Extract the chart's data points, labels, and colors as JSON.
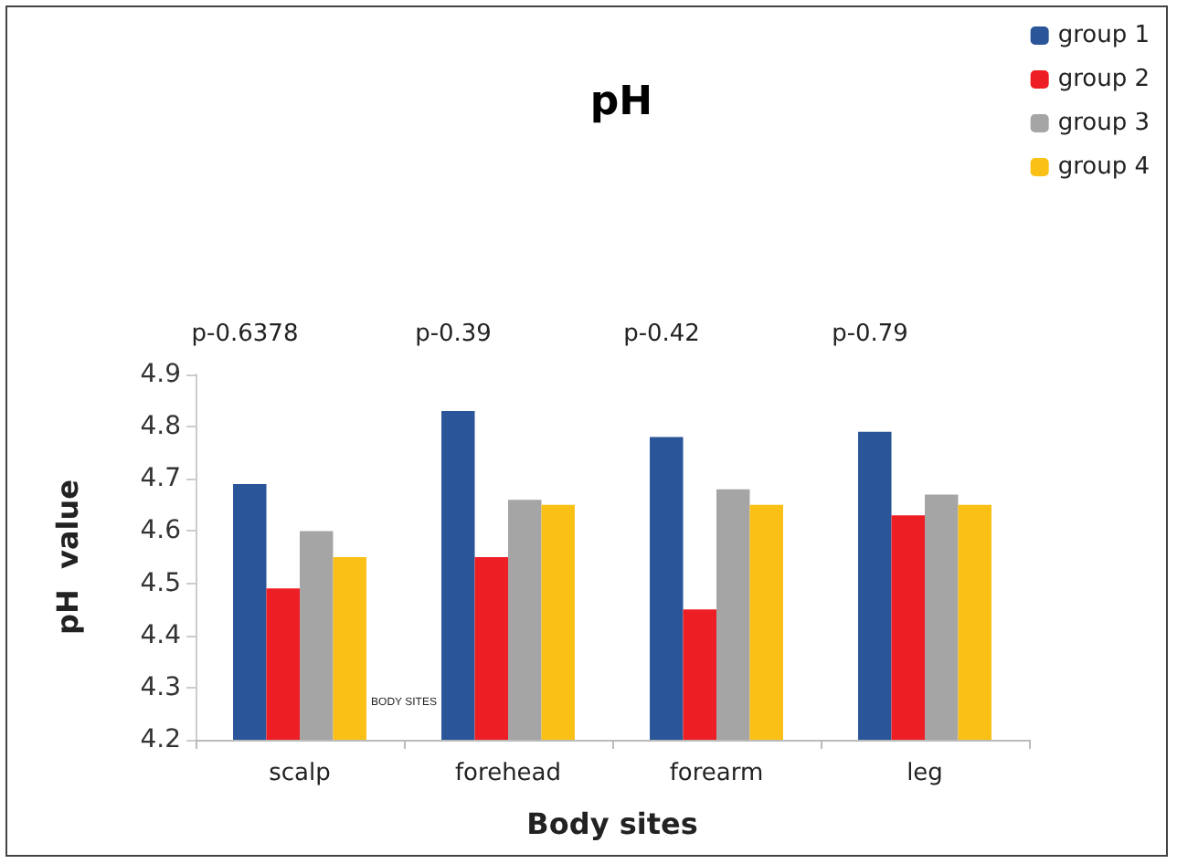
{
  "chart_data": {
    "type": "bar",
    "title": "pH",
    "xlabel": "Body sites",
    "ylabel": "pH  value",
    "categories": [
      "scalp",
      "forehead",
      "forearm",
      "leg"
    ],
    "series": [
      {
        "name": "group 1",
        "color": "#2a5599",
        "values": [
          4.69,
          4.83,
          4.78,
          4.79
        ]
      },
      {
        "name": "group 2",
        "color": "#ee1f24",
        "values": [
          4.49,
          4.55,
          4.45,
          4.63
        ]
      },
      {
        "name": "group 3",
        "color": "#a5a5a5",
        "values": [
          4.6,
          4.66,
          4.68,
          4.67
        ]
      },
      {
        "name": "group 4",
        "color": "#fbc015",
        "values": [
          4.55,
          4.65,
          4.65,
          4.65
        ]
      }
    ],
    "ylim": [
      4.2,
      4.9
    ],
    "yticks": [
      4.2,
      4.3,
      4.4,
      4.5,
      4.6,
      4.7,
      4.8,
      4.9
    ],
    "grid": false,
    "legend": "top right",
    "annotations": [
      "p-0.6378",
      "p-0.39",
      "p-0.42",
      "p-0.79",
      "BODY SITES"
    ]
  }
}
